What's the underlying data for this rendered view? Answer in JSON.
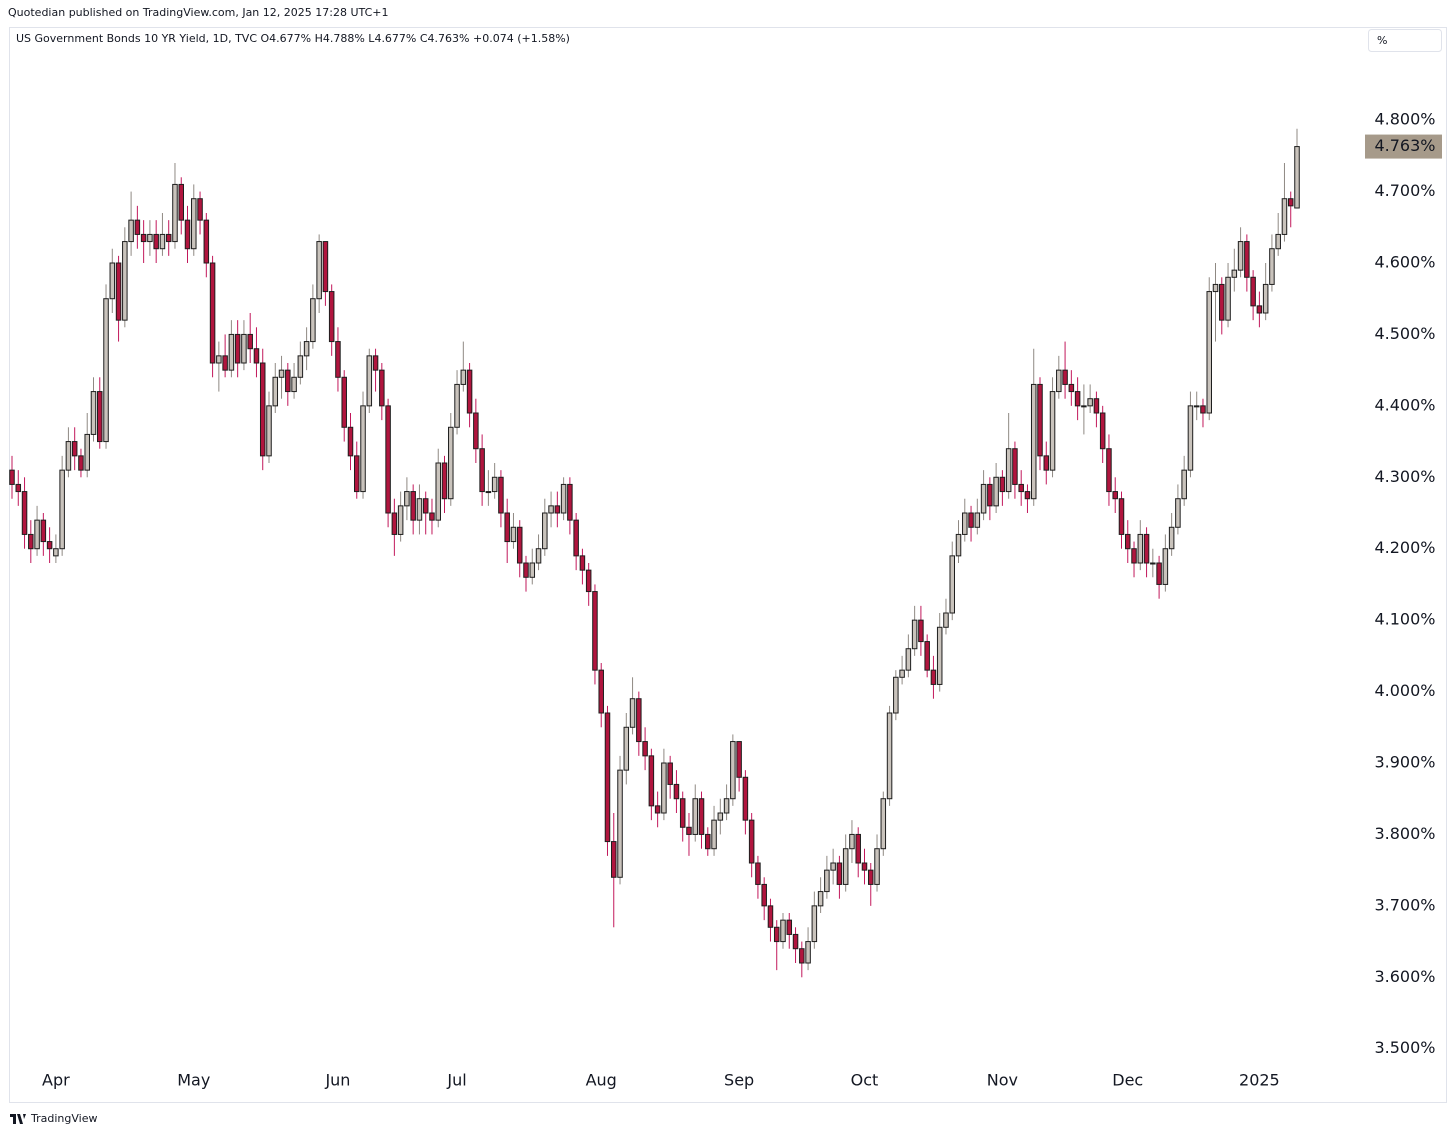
{
  "header_text": "Quotedian published on TradingView.com, Jan 12, 2025 17:28 UTC+1",
  "scale_button": "%",
  "footer_brand": "TradingView",
  "chart_data": {
    "type": "candlestick",
    "title": "US Government Bonds 10 YR Yield, 1D, TVC  O4.677%  H4.788%  L4.677%  C4.763%  +0.074 (+1.58%)",
    "up_color": "#c9c3bc",
    "down_color": "#b0153e",
    "ylim": [
      3.424,
      4.929
    ],
    "yticks": [
      {
        "value": 3.5,
        "label": "3.500%"
      },
      {
        "value": 3.6,
        "label": "3.600%"
      },
      {
        "value": 3.7,
        "label": "3.700%"
      },
      {
        "value": 3.8,
        "label": "3.800%"
      },
      {
        "value": 3.9,
        "label": "3.900%"
      },
      {
        "value": 4.0,
        "label": "4.000%"
      },
      {
        "value": 4.1,
        "label": "4.100%"
      },
      {
        "value": 4.2,
        "label": "4.200%"
      },
      {
        "value": 4.3,
        "label": "4.300%"
      },
      {
        "value": 4.4,
        "label": "4.400%"
      },
      {
        "value": 4.5,
        "label": "4.500%"
      },
      {
        "value": 4.6,
        "label": "4.600%"
      },
      {
        "value": 4.7,
        "label": "4.700%"
      },
      {
        "value": 4.8,
        "label": "4.800%"
      }
    ],
    "last_price": {
      "value": 4.763,
      "label": "4.763%"
    },
    "categories": [
      null,
      null,
      null,
      null,
      null,
      null,
      null,
      "Apr",
      null,
      null,
      null,
      null,
      null,
      null,
      null,
      null,
      null,
      null,
      null,
      null,
      null,
      null,
      null,
      null,
      null,
      null,
      null,
      null,
      null,
      "May",
      null,
      null,
      null,
      null,
      null,
      null,
      null,
      null,
      null,
      null,
      null,
      null,
      null,
      null,
      null,
      null,
      null,
      null,
      null,
      null,
      null,
      null,
      "Jun",
      null,
      null,
      null,
      null,
      null,
      null,
      null,
      null,
      null,
      null,
      null,
      null,
      null,
      null,
      null,
      null,
      null,
      null,
      "Jul",
      null,
      null,
      null,
      null,
      null,
      null,
      null,
      null,
      null,
      null,
      null,
      null,
      null,
      null,
      null,
      null,
      null,
      null,
      null,
      null,
      null,
      null,
      "Aug",
      null,
      null,
      null,
      null,
      null,
      null,
      null,
      null,
      null,
      null,
      null,
      null,
      null,
      null,
      null,
      null,
      null,
      null,
      null,
      null,
      null,
      "Sep",
      null,
      null,
      null,
      null,
      null,
      null,
      null,
      null,
      null,
      null,
      null,
      null,
      null,
      null,
      null,
      null,
      null,
      null,
      null,
      "Oct",
      null,
      null,
      null,
      null,
      null,
      null,
      null,
      null,
      null,
      null,
      null,
      null,
      null,
      null,
      null,
      null,
      null,
      null,
      null,
      null,
      null,
      "Nov",
      null,
      null,
      null,
      null,
      null,
      null,
      null,
      null,
      null,
      null,
      null,
      null,
      null,
      null,
      null,
      null,
      null,
      null,
      null,
      "Dec",
      null,
      null,
      null,
      null,
      null,
      null,
      null,
      null,
      null,
      null,
      null,
      null,
      null,
      null,
      null,
      null,
      null,
      null,
      null,
      null,
      "2025",
      null,
      null,
      null,
      null,
      null,
      null
    ],
    "candles": [
      [
        4.31,
        4.33,
        4.27,
        4.29
      ],
      [
        4.29,
        4.31,
        4.26,
        4.28
      ],
      [
        4.28,
        4.3,
        4.2,
        4.22
      ],
      [
        4.22,
        4.24,
        4.18,
        4.2
      ],
      [
        4.2,
        4.26,
        4.19,
        4.24
      ],
      [
        4.24,
        4.25,
        4.19,
        4.21
      ],
      [
        4.21,
        4.23,
        4.18,
        4.2
      ],
      [
        4.19,
        4.22,
        4.18,
        4.2
      ],
      [
        4.2,
        4.33,
        4.19,
        4.31
      ],
      [
        4.31,
        4.37,
        4.3,
        4.35
      ],
      [
        4.35,
        4.37,
        4.31,
        4.33
      ],
      [
        4.33,
        4.34,
        4.3,
        4.31
      ],
      [
        4.31,
        4.39,
        4.3,
        4.36
      ],
      [
        4.36,
        4.44,
        4.35,
        4.42
      ],
      [
        4.42,
        4.44,
        4.34,
        4.35
      ],
      [
        4.35,
        4.57,
        4.34,
        4.55
      ],
      [
        4.55,
        4.62,
        4.53,
        4.6
      ],
      [
        4.6,
        4.61,
        4.49,
        4.52
      ],
      [
        4.52,
        4.65,
        4.51,
        4.63
      ],
      [
        4.63,
        4.7,
        4.61,
        4.66
      ],
      [
        4.66,
        4.68,
        4.62,
        4.64
      ],
      [
        4.64,
        4.66,
        4.6,
        4.63
      ],
      [
        4.63,
        4.66,
        4.61,
        4.64
      ],
      [
        4.64,
        4.66,
        4.6,
        4.62
      ],
      [
        4.62,
        4.67,
        4.61,
        4.64
      ],
      [
        4.64,
        4.66,
        4.61,
        4.63
      ],
      [
        4.63,
        4.74,
        4.62,
        4.71
      ],
      [
        4.71,
        4.72,
        4.64,
        4.66
      ],
      [
        4.66,
        4.68,
        4.6,
        4.62
      ],
      [
        4.62,
        4.71,
        4.61,
        4.69
      ],
      [
        4.69,
        4.7,
        4.64,
        4.66
      ],
      [
        4.66,
        4.67,
        4.58,
        4.6
      ],
      [
        4.6,
        4.61,
        4.44,
        4.46
      ],
      [
        4.46,
        4.49,
        4.42,
        4.47
      ],
      [
        4.47,
        4.5,
        4.44,
        4.45
      ],
      [
        4.45,
        4.52,
        4.44,
        4.5
      ],
      [
        4.5,
        4.52,
        4.44,
        4.46
      ],
      [
        4.46,
        4.52,
        4.45,
        4.5
      ],
      [
        4.5,
        4.53,
        4.46,
        4.48
      ],
      [
        4.48,
        4.51,
        4.44,
        4.46
      ],
      [
        4.46,
        4.48,
        4.31,
        4.33
      ],
      [
        4.33,
        4.42,
        4.32,
        4.4
      ],
      [
        4.4,
        4.46,
        4.39,
        4.44
      ],
      [
        4.44,
        4.47,
        4.41,
        4.45
      ],
      [
        4.45,
        4.46,
        4.4,
        4.42
      ],
      [
        4.42,
        4.46,
        4.41,
        4.44
      ],
      [
        4.44,
        4.49,
        4.43,
        4.47
      ],
      [
        4.47,
        4.51,
        4.45,
        4.49
      ],
      [
        4.49,
        4.57,
        4.48,
        4.55
      ],
      [
        4.55,
        4.64,
        4.53,
        4.63
      ],
      [
        4.63,
        4.63,
        4.54,
        4.56
      ],
      [
        4.56,
        4.57,
        4.47,
        4.49
      ],
      [
        4.49,
        4.51,
        4.42,
        4.44
      ],
      [
        4.44,
        4.45,
        4.35,
        4.37
      ],
      [
        4.37,
        4.39,
        4.31,
        4.33
      ],
      [
        4.33,
        4.35,
        4.27,
        4.28
      ],
      [
        4.28,
        4.42,
        4.27,
        4.4
      ],
      [
        4.4,
        4.48,
        4.39,
        4.47
      ],
      [
        4.47,
        4.48,
        4.42,
        4.45
      ],
      [
        4.45,
        4.46,
        4.38,
        4.4
      ],
      [
        4.4,
        4.41,
        4.23,
        4.25
      ],
      [
        4.25,
        4.27,
        4.19,
        4.22
      ],
      [
        4.22,
        4.28,
        4.21,
        4.26
      ],
      [
        4.26,
        4.3,
        4.24,
        4.28
      ],
      [
        4.28,
        4.29,
        4.22,
        4.24
      ],
      [
        4.24,
        4.29,
        4.22,
        4.27
      ],
      [
        4.27,
        4.28,
        4.22,
        4.25
      ],
      [
        4.25,
        4.27,
        4.22,
        4.24
      ],
      [
        4.24,
        4.34,
        4.23,
        4.32
      ],
      [
        4.32,
        4.33,
        4.25,
        4.27
      ],
      [
        4.27,
        4.39,
        4.26,
        4.37
      ],
      [
        4.37,
        4.45,
        4.36,
        4.43
      ],
      [
        4.43,
        4.49,
        4.42,
        4.45
      ],
      [
        4.45,
        4.46,
        4.37,
        4.39
      ],
      [
        4.39,
        4.41,
        4.32,
        4.34
      ],
      [
        4.34,
        4.36,
        4.26,
        4.28
      ],
      [
        4.28,
        4.31,
        4.26,
        4.28
      ],
      [
        4.28,
        4.32,
        4.27,
        4.3
      ],
      [
        4.3,
        4.31,
        4.23,
        4.25
      ],
      [
        4.25,
        4.27,
        4.18,
        4.21
      ],
      [
        4.21,
        4.25,
        4.2,
        4.23
      ],
      [
        4.23,
        4.24,
        4.16,
        4.18
      ],
      [
        4.18,
        4.19,
        4.14,
        4.16
      ],
      [
        4.16,
        4.2,
        4.15,
        4.18
      ],
      [
        4.18,
        4.22,
        4.17,
        4.2
      ],
      [
        4.2,
        4.27,
        4.19,
        4.25
      ],
      [
        4.25,
        4.28,
        4.23,
        4.26
      ],
      [
        4.26,
        4.28,
        4.23,
        4.25
      ],
      [
        4.25,
        4.3,
        4.24,
        4.29
      ],
      [
        4.29,
        4.3,
        4.22,
        4.24
      ],
      [
        4.24,
        4.25,
        4.17,
        4.19
      ],
      [
        4.19,
        4.2,
        4.15,
        4.17
      ],
      [
        4.17,
        4.18,
        4.12,
        4.14
      ],
      [
        4.14,
        4.15,
        4.01,
        4.03
      ],
      [
        4.03,
        4.04,
        3.95,
        3.97
      ],
      [
        3.97,
        3.98,
        3.77,
        3.79
      ],
      [
        3.79,
        3.83,
        3.67,
        3.74
      ],
      [
        3.74,
        3.91,
        3.73,
        3.89
      ],
      [
        3.89,
        3.97,
        3.87,
        3.95
      ],
      [
        3.95,
        4.02,
        3.94,
        3.99
      ],
      [
        3.99,
        4.0,
        3.91,
        3.93
      ],
      [
        3.93,
        3.95,
        3.89,
        3.91
      ],
      [
        3.91,
        3.92,
        3.82,
        3.84
      ],
      [
        3.84,
        3.86,
        3.81,
        3.83
      ],
      [
        3.83,
        3.92,
        3.82,
        3.9
      ],
      [
        3.9,
        3.91,
        3.85,
        3.87
      ],
      [
        3.87,
        3.89,
        3.83,
        3.85
      ],
      [
        3.85,
        3.86,
        3.79,
        3.81
      ],
      [
        3.81,
        3.83,
        3.77,
        3.8
      ],
      [
        3.8,
        3.87,
        3.79,
        3.85
      ],
      [
        3.85,
        3.86,
        3.78,
        3.8
      ],
      [
        3.8,
        3.81,
        3.77,
        3.78
      ],
      [
        3.78,
        3.84,
        3.77,
        3.82
      ],
      [
        3.82,
        3.85,
        3.8,
        3.83
      ],
      [
        3.83,
        3.87,
        3.82,
        3.85
      ],
      [
        3.85,
        3.94,
        3.84,
        3.93
      ],
      [
        3.93,
        3.93,
        3.86,
        3.88
      ],
      [
        3.88,
        3.89,
        3.8,
        3.82
      ],
      [
        3.82,
        3.83,
        3.74,
        3.76
      ],
      [
        3.76,
        3.77,
        3.71,
        3.73
      ],
      [
        3.73,
        3.74,
        3.68,
        3.7
      ],
      [
        3.7,
        3.71,
        3.65,
        3.67
      ],
      [
        3.67,
        3.68,
        3.61,
        3.65
      ],
      [
        3.65,
        3.69,
        3.64,
        3.68
      ],
      [
        3.68,
        3.69,
        3.64,
        3.66
      ],
      [
        3.66,
        3.67,
        3.62,
        3.64
      ],
      [
        3.64,
        3.65,
        3.6,
        3.62
      ],
      [
        3.62,
        3.67,
        3.61,
        3.65
      ],
      [
        3.65,
        3.72,
        3.64,
        3.7
      ],
      [
        3.7,
        3.74,
        3.69,
        3.72
      ],
      [
        3.72,
        3.77,
        3.71,
        3.75
      ],
      [
        3.75,
        3.78,
        3.73,
        3.76
      ],
      [
        3.76,
        3.77,
        3.71,
        3.73
      ],
      [
        3.73,
        3.8,
        3.72,
        3.78
      ],
      [
        3.78,
        3.82,
        3.76,
        3.8
      ],
      [
        3.8,
        3.81,
        3.74,
        3.76
      ],
      [
        3.76,
        3.78,
        3.73,
        3.75
      ],
      [
        3.75,
        3.76,
        3.7,
        3.73
      ],
      [
        3.73,
        3.8,
        3.72,
        3.78
      ],
      [
        3.78,
        3.86,
        3.77,
        3.85
      ],
      [
        3.85,
        3.98,
        3.84,
        3.97
      ],
      [
        3.97,
        4.03,
        3.96,
        4.02
      ],
      [
        4.02,
        4.05,
        4.01,
        4.03
      ],
      [
        4.03,
        4.08,
        4.02,
        4.06
      ],
      [
        4.06,
        4.12,
        4.05,
        4.1
      ],
      [
        4.1,
        4.12,
        4.05,
        4.07
      ],
      [
        4.07,
        4.08,
        4.02,
        4.03
      ],
      [
        4.03,
        4.05,
        3.99,
        4.01
      ],
      [
        4.01,
        4.11,
        4.0,
        4.09
      ],
      [
        4.09,
        4.13,
        4.08,
        4.11
      ],
      [
        4.11,
        4.21,
        4.1,
        4.19
      ],
      [
        4.19,
        4.24,
        4.18,
        4.22
      ],
      [
        4.22,
        4.27,
        4.21,
        4.25
      ],
      [
        4.25,
        4.26,
        4.21,
        4.23
      ],
      [
        4.23,
        4.27,
        4.22,
        4.25
      ],
      [
        4.25,
        4.31,
        4.24,
        4.29
      ],
      [
        4.29,
        4.3,
        4.24,
        4.26
      ],
      [
        4.26,
        4.32,
        4.25,
        4.3
      ],
      [
        4.3,
        4.31,
        4.26,
        4.28
      ],
      [
        4.28,
        4.39,
        4.27,
        4.34
      ],
      [
        4.34,
        4.35,
        4.27,
        4.29
      ],
      [
        4.29,
        4.31,
        4.26,
        4.28
      ],
      [
        4.28,
        4.29,
        4.25,
        4.27
      ],
      [
        4.27,
        4.48,
        4.26,
        4.43
      ],
      [
        4.43,
        4.44,
        4.31,
        4.33
      ],
      [
        4.33,
        4.35,
        4.29,
        4.31
      ],
      [
        4.31,
        4.44,
        4.3,
        4.42
      ],
      [
        4.42,
        4.47,
        4.41,
        4.45
      ],
      [
        4.45,
        4.49,
        4.41,
        4.43
      ],
      [
        4.43,
        4.45,
        4.4,
        4.42
      ],
      [
        4.42,
        4.44,
        4.38,
        4.4
      ],
      [
        4.4,
        4.43,
        4.36,
        4.4
      ],
      [
        4.4,
        4.43,
        4.39,
        4.41
      ],
      [
        4.41,
        4.42,
        4.37,
        4.39
      ],
      [
        4.39,
        4.4,
        4.32,
        4.34
      ],
      [
        4.34,
        4.36,
        4.26,
        4.28
      ],
      [
        4.28,
        4.3,
        4.25,
        4.27
      ],
      [
        4.27,
        4.28,
        4.2,
        4.22
      ],
      [
        4.22,
        4.24,
        4.18,
        4.2
      ],
      [
        4.2,
        4.21,
        4.16,
        4.18
      ],
      [
        4.18,
        4.24,
        4.17,
        4.22
      ],
      [
        4.22,
        4.23,
        4.16,
        4.18
      ],
      [
        4.18,
        4.2,
        4.16,
        4.18
      ],
      [
        4.18,
        4.19,
        4.13,
        4.15
      ],
      [
        4.15,
        4.22,
        4.14,
        4.2
      ],
      [
        4.2,
        4.25,
        4.19,
        4.23
      ],
      [
        4.23,
        4.29,
        4.22,
        4.27
      ],
      [
        4.27,
        4.33,
        4.26,
        4.31
      ],
      [
        4.31,
        4.42,
        4.3,
        4.4
      ],
      [
        4.4,
        4.42,
        4.38,
        4.4
      ],
      [
        4.4,
        4.41,
        4.37,
        4.39
      ],
      [
        4.39,
        4.58,
        4.38,
        4.56
      ],
      [
        4.56,
        4.6,
        4.49,
        4.57
      ],
      [
        4.57,
        4.58,
        4.5,
        4.52
      ],
      [
        4.52,
        4.6,
        4.51,
        4.58
      ],
      [
        4.58,
        4.62,
        4.56,
        4.59
      ],
      [
        4.59,
        4.65,
        4.58,
        4.63
      ],
      [
        4.63,
        4.64,
        4.56,
        4.58
      ],
      [
        4.58,
        4.59,
        4.52,
        4.54
      ],
      [
        4.54,
        4.56,
        4.51,
        4.53
      ],
      [
        4.53,
        4.6,
        4.52,
        4.57
      ],
      [
        4.57,
        4.64,
        4.56,
        4.62
      ],
      [
        4.62,
        4.67,
        4.61,
        4.64
      ],
      [
        4.64,
        4.74,
        4.63,
        4.69
      ],
      [
        4.69,
        4.7,
        4.65,
        4.68
      ],
      [
        4.677,
        4.788,
        4.677,
        4.763
      ]
    ]
  }
}
